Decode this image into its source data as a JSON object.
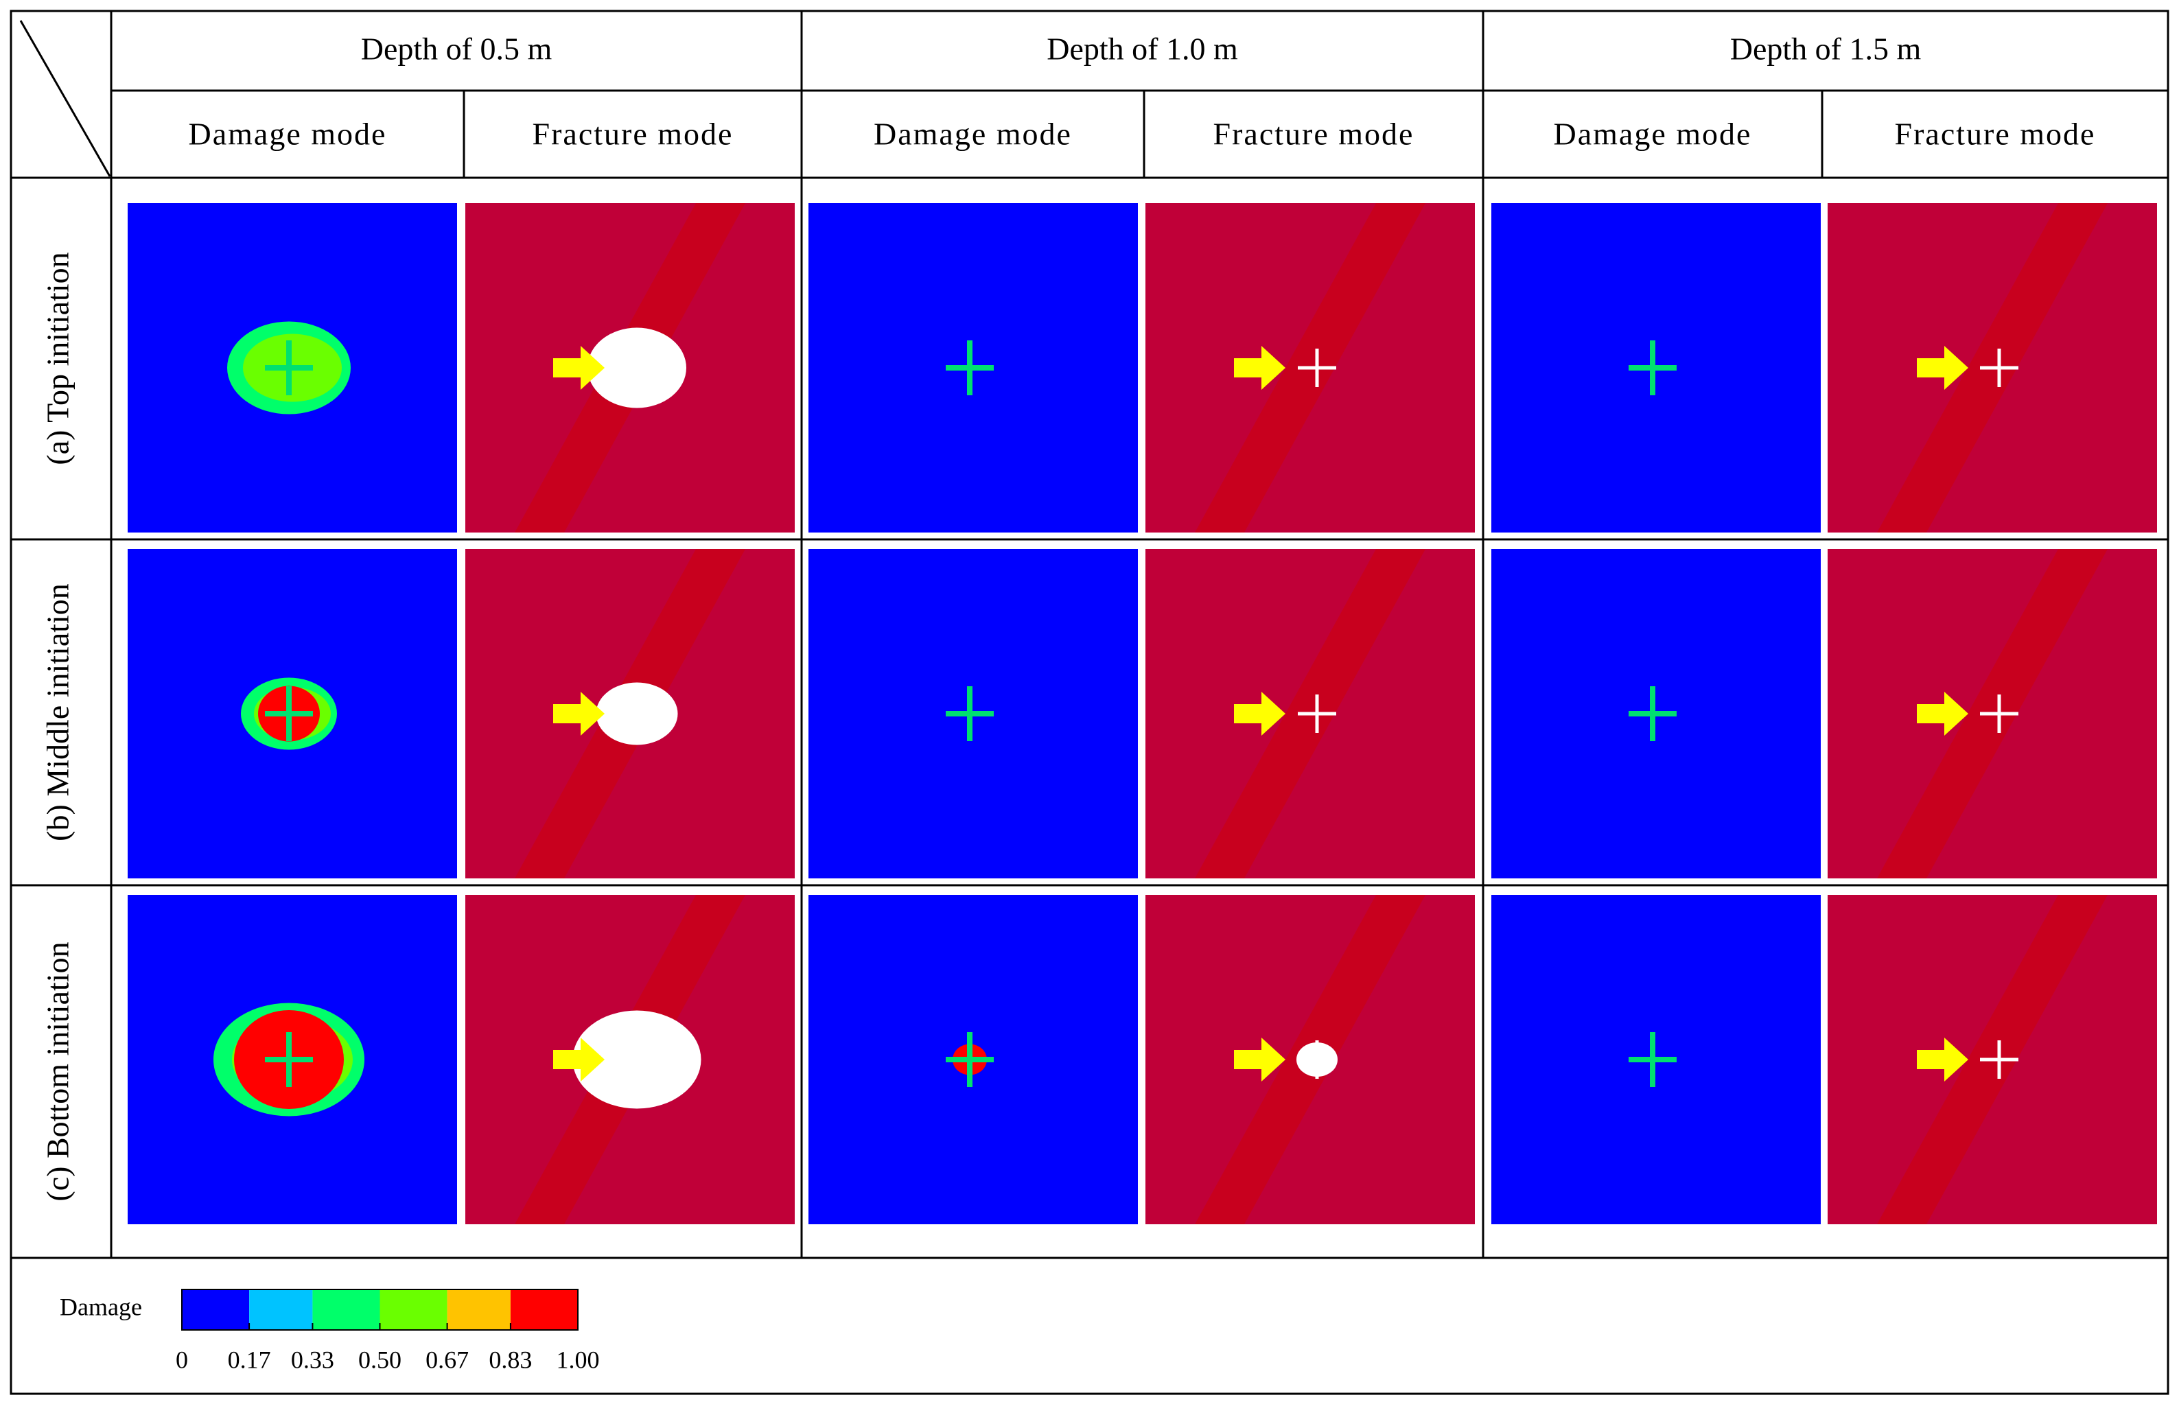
{
  "columns": [
    {
      "depth": "Depth of 0.5 m",
      "modes": [
        "Damage mode",
        "Fracture mode"
      ]
    },
    {
      "depth": "Depth of 1.0 m",
      "modes": [
        "Damage mode",
        "Fracture mode"
      ]
    },
    {
      "depth": "Depth of 1.5 m",
      "modes": [
        "Damage mode",
        "Fracture mode"
      ]
    }
  ],
  "rows": [
    "(a) Top initiation",
    "(b) Middle initiation",
    "(c) Bottom initiation"
  ],
  "legend": {
    "title": "Damage",
    "colors": [
      "#0000ff",
      "#00c3ff",
      "#00ff6a",
      "#6aff00",
      "#ffc300",
      "#ff0000"
    ],
    "lim": [
      0,
      1
    ],
    "ticks": [
      0,
      0.17,
      0.33,
      {
        "value": 0.5,
        "label": "0.50"
      },
      0.67,
      0.83,
      {
        "value": 1,
        "label": "1.00"
      }
    ]
  }
}
